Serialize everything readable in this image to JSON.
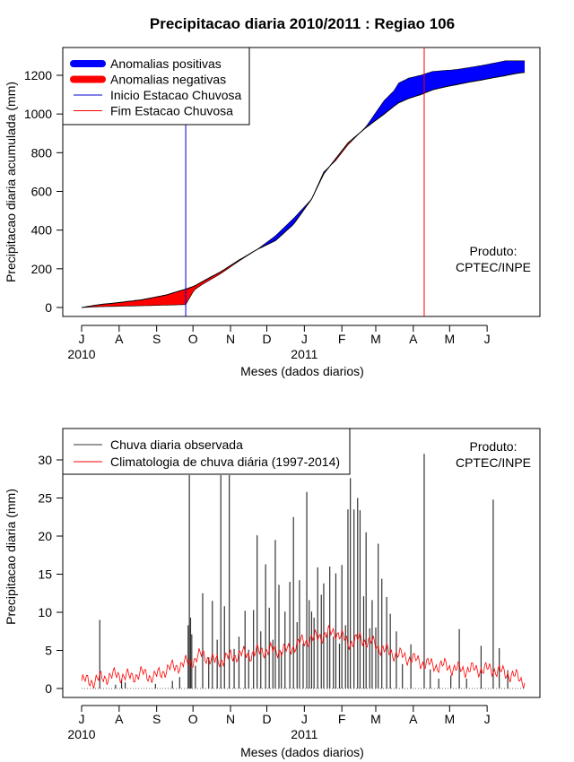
{
  "chart_data": [
    {
      "type": "area",
      "title": "Precipitacao diaria 2010/2011 : Regiao 106",
      "ylabel": "Precipitacao diaria acumulada (mm)",
      "xlabel": "Meses (dados diarios)",
      "ylim": [
        0,
        1300
      ],
      "y_ticks": [
        "0",
        "200",
        "400",
        "600",
        "800",
        "1000",
        "1200"
      ],
      "x_ticks": [
        "J",
        "A",
        "S",
        "O",
        "N",
        "D",
        "J",
        "F",
        "M",
        "A",
        "M",
        "J"
      ],
      "x_year_labels": [
        "2010",
        "2011"
      ],
      "legend_position": "top-left",
      "legend": [
        {
          "label": "Anomalias positivas",
          "color": "#0000FF",
          "style": "thick"
        },
        {
          "label": "Anomalias negativas",
          "color": "#FF0000",
          "style": "thick"
        },
        {
          "label": "Inicio Estacao Chuvosa",
          "color": "#0000CC",
          "style": "thin"
        },
        {
          "label": "Fim Estacao Chuvosa",
          "color": "#FF0000",
          "style": "thin"
        }
      ],
      "product_label": [
        "Produto:",
        "CPTEC/INPE"
      ],
      "x_range_days": [
        0,
        366
      ],
      "rainy_season_start_day": 86,
      "rainy_season_end_day": 283,
      "observed_cumulative": {
        "days": [
          0,
          15,
          30,
          50,
          70,
          86,
          93,
          100,
          115,
          130,
          145,
          160,
          175,
          190,
          200,
          210,
          220,
          235,
          250,
          258,
          262,
          270,
          280,
          290,
          300,
          310,
          320,
          330,
          340,
          350,
          355,
          365
        ],
        "values": [
          0,
          4,
          6,
          9,
          12,
          15,
          90,
          120,
          175,
          240,
          300,
          370,
          460,
          560,
          700,
          760,
          840,
          935,
          1070,
          1120,
          1160,
          1185,
          1200,
          1220,
          1225,
          1230,
          1240,
          1250,
          1262,
          1275,
          1275,
          1275
        ]
      },
      "climatology_cumulative": {
        "days": [
          0,
          15,
          30,
          50,
          70,
          86,
          93,
          100,
          115,
          130,
          145,
          160,
          175,
          190,
          200,
          210,
          220,
          235,
          250,
          258,
          262,
          270,
          280,
          290,
          300,
          310,
          320,
          330,
          340,
          350,
          355,
          365
        ],
        "values": [
          0,
          15,
          25,
          40,
          65,
          95,
          110,
          135,
          185,
          245,
          300,
          345,
          430,
          560,
          690,
          770,
          850,
          930,
          1000,
          1040,
          1058,
          1080,
          1100,
          1125,
          1140,
          1152,
          1165,
          1175,
          1188,
          1198,
          1205,
          1215
        ]
      }
    },
    {
      "type": "bar",
      "ylabel": "Precipitacao diaria (mm)",
      "xlabel": "Meses (dados diarios)",
      "ylim": [
        0,
        33
      ],
      "y_ticks": [
        "0",
        "5",
        "10",
        "15",
        "20",
        "25",
        "30"
      ],
      "x_ticks": [
        "J",
        "A",
        "S",
        "O",
        "N",
        "D",
        "J",
        "F",
        "M",
        "A",
        "M",
        "J"
      ],
      "x_year_labels": [
        "2010",
        "2011"
      ],
      "legend_position": "top-left",
      "legend": [
        {
          "label": "Chuva diaria observada",
          "color": "#333333"
        },
        {
          "label": "Climatologia de chuva diária (1997-2014)",
          "color": "#FF0000"
        }
      ],
      "product_label": [
        "Produto:",
        "CPTEC/INPE"
      ],
      "x_range_days": [
        0,
        366
      ],
      "observed_daily": {
        "days": [
          15,
          28,
          33,
          36,
          61,
          75,
          81,
          88,
          89,
          90,
          91,
          94,
          100,
          105,
          108,
          112,
          115,
          118,
          122,
          126,
          130,
          135,
          138,
          142,
          145,
          148,
          152,
          155,
          158,
          160,
          163,
          165,
          168,
          172,
          175,
          178,
          180,
          183,
          186,
          188,
          190,
          192,
          195,
          198,
          200,
          203,
          205,
          208,
          210,
          213,
          215,
          218,
          220,
          222,
          225,
          228,
          230,
          233,
          235,
          238,
          240,
          243,
          245,
          248,
          252,
          255,
          260,
          265,
          272,
          283,
          288,
          295,
          305,
          312,
          318,
          330,
          340,
          345,
          352
        ],
        "values": [
          9.0,
          0.5,
          1.2,
          0.8,
          0.6,
          1.0,
          1.5,
          8.3,
          28.0,
          9.3,
          7.1,
          3.0,
          12.5,
          4.1,
          11.5,
          6.4,
          28.0,
          10.8,
          28.0,
          5.2,
          6.8,
          10.2,
          5.1,
          10.3,
          20.1,
          7.5,
          16.3,
          10.6,
          6.4,
          19.5,
          13.6,
          4.8,
          10.1,
          14.0,
          22.5,
          8.7,
          14.2,
          5.9,
          25.8,
          11.6,
          10.1,
          9.3,
          15.9,
          12.3,
          13.8,
          7.4,
          16.0,
          6.8,
          15.1,
          5.9,
          16.2,
          8.3,
          23.5,
          27.6,
          23.5,
          25.0,
          23.4,
          12.1,
          20.5,
          7.9,
          11.6,
          8.0,
          19.0,
          14.4,
          12.0,
          9.8,
          7.5,
          3.2,
          5.8,
          30.8,
          2.5,
          1.3,
          1.7,
          7.8,
          1.3,
          5.6,
          24.8,
          5.3,
          2.4
        ]
      },
      "climatology_daily": {
        "days": [
          0,
          10,
          20,
          30,
          40,
          50,
          60,
          70,
          80,
          90,
          100,
          110,
          120,
          130,
          140,
          150,
          160,
          170,
          180,
          190,
          200,
          210,
          220,
          230,
          240,
          250,
          260,
          270,
          280,
          290,
          300,
          310,
          320,
          330,
          340,
          350,
          360,
          365
        ],
        "values": [
          1.0,
          1.0,
          1.5,
          1.8,
          1.5,
          2.0,
          1.5,
          2.5,
          3.0,
          3.5,
          4.5,
          3.5,
          4.0,
          4.5,
          4.5,
          5.0,
          5.0,
          5.0,
          6.0,
          6.5,
          7.0,
          7.5,
          6.0,
          6.5,
          6.0,
          5.0,
          4.5,
          4.0,
          3.5,
          3.0,
          3.0,
          2.5,
          2.5,
          2.5,
          2.5,
          2.0,
          1.5,
          1.0
        ]
      }
    }
  ]
}
